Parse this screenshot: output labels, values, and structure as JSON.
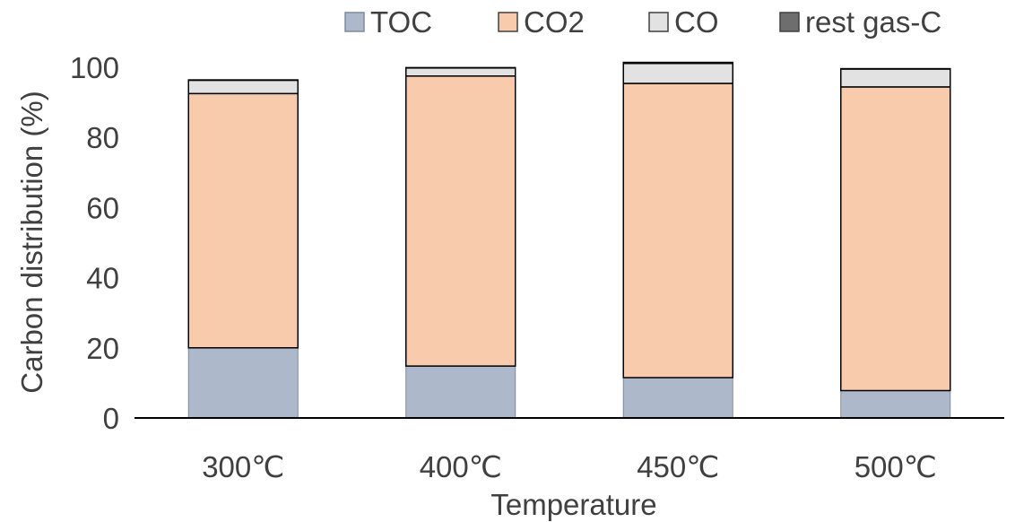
{
  "chart_data": {
    "type": "bar",
    "stacked": true,
    "title": "",
    "xlabel": "Temperature",
    "ylabel": "Carbon distribution (%)",
    "ylim": [
      0,
      100
    ],
    "yticks": [
      "0",
      "20",
      "40",
      "60",
      "80",
      "100"
    ],
    "grid": false,
    "legend_position": "top",
    "categories": [
      "300℃",
      "400℃",
      "450℃",
      "500℃"
    ],
    "series": [
      {
        "name": "TOC",
        "values": [
          20.0,
          14.8,
          11.5,
          7.8
        ],
        "color": "#adb9ca"
      },
      {
        "name": "CO2",
        "values": [
          72.5,
          82.7,
          83.9,
          86.6
        ],
        "color": "#f8cbad"
      },
      {
        "name": "CO",
        "values": [
          3.8,
          2.3,
          5.7,
          5.1
        ],
        "color": "#e2e2e2"
      },
      {
        "name": "rest gas-C",
        "values": [
          0.1,
          0.1,
          0.3,
          0.1
        ],
        "color": "#6e6e6e"
      }
    ]
  }
}
